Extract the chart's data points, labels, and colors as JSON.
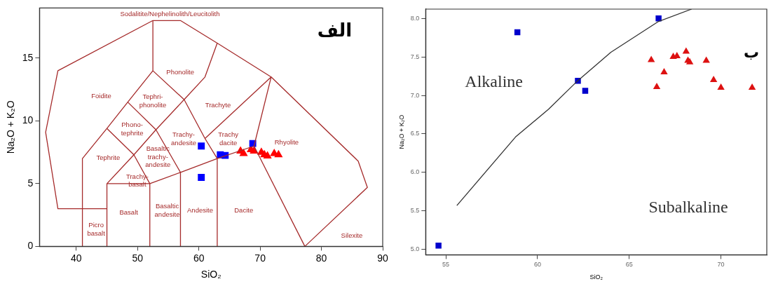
{
  "chart_data": [
    {
      "type": "scatter",
      "xlabel": "SiO₂",
      "ylabel": "Na₂O + K₂O",
      "xlim": [
        34,
        90
      ],
      "ylim": [
        0,
        19
      ],
      "xticks": [
        40,
        50,
        60,
        70,
        80,
        90
      ],
      "yticks": [
        0,
        5,
        10,
        15
      ],
      "grid": false,
      "legend": false,
      "series": [
        {
          "type": "line",
          "color": "#a52a2a",
          "marker": "none",
          "x": [
            45,
            37,
            35,
            37,
            52.5,
            57,
            63,
            71.8,
            86,
            87.5,
            77.3
          ],
          "values": [
            3,
            3,
            9.1,
            14,
            18,
            18,
            16.2,
            13.5,
            6.8,
            4.7,
            0
          ]
        },
        {
          "type": "line",
          "color": "#a52a2a",
          "marker": "none",
          "x": [
            41,
            41,
            45,
            48.4,
            52.5,
            52.5
          ],
          "values": [
            0,
            7,
            9.4,
            11.5,
            14,
            18
          ]
        },
        {
          "type": "line",
          "color": "#a52a2a",
          "marker": "none",
          "x": [
            45,
            45,
            52,
            57,
            63,
            69,
            71.8
          ],
          "values": [
            0,
            5,
            5,
            5.9,
            7,
            8,
            13.5
          ]
        },
        {
          "type": "line",
          "color": "#a52a2a",
          "marker": "none",
          "x": [
            52,
            52
          ],
          "values": [
            0,
            5
          ]
        },
        {
          "type": "line",
          "color": "#a52a2a",
          "marker": "none",
          "x": [
            57,
            57
          ],
          "values": [
            0,
            5.9
          ]
        },
        {
          "type": "line",
          "color": "#a52a2a",
          "marker": "none",
          "x": [
            63,
            63
          ],
          "values": [
            0,
            7
          ]
        },
        {
          "type": "line",
          "color": "#a52a2a",
          "marker": "none",
          "x": [
            69,
            77.3
          ],
          "values": [
            8,
            0
          ]
        },
        {
          "type": "line",
          "color": "#a52a2a",
          "marker": "none",
          "x": [
            45,
            49.4,
            52
          ],
          "values": [
            9.4,
            7.3,
            5
          ]
        },
        {
          "type": "line",
          "color": "#a52a2a",
          "marker": "none",
          "x": [
            45,
            49.4,
            53,
            57.6,
            61,
            63
          ],
          "values": [
            5,
            7.3,
            9.3,
            11.7,
            13.5,
            16.2
          ]
        },
        {
          "type": "line",
          "color": "#a52a2a",
          "marker": "none",
          "x": [
            48.4,
            53,
            57
          ],
          "values": [
            11.5,
            9.3,
            5.9
          ]
        },
        {
          "type": "line",
          "color": "#a52a2a",
          "marker": "none",
          "x": [
            52.5,
            57.6,
            61,
            63
          ],
          "values": [
            14,
            11.7,
            8.6,
            7
          ]
        },
        {
          "type": "line",
          "color": "#a52a2a",
          "marker": "none",
          "x": [
            61,
            71.8
          ],
          "values": [
            8.6,
            13.5
          ]
        },
        {
          "type": "scatter",
          "color": "#0000ff",
          "marker": "square",
          "x": [
            60.4,
            60.4,
            63.5,
            64.3,
            68.8
          ],
          "values": [
            8.0,
            5.5,
            7.3,
            7.25,
            8.2
          ]
        },
        {
          "type": "scatter",
          "color": "#ff0000",
          "marker": "triangle",
          "x": [
            66.8,
            67.3,
            68.5,
            69,
            70.2,
            70.7,
            71.2,
            72.3,
            73
          ],
          "values": [
            7.6,
            7.4,
            7.7,
            7.6,
            7.5,
            7.3,
            7.2,
            7.4,
            7.3
          ]
        }
      ],
      "annotations": [
        "الف",
        "Sodalitite/Nephelinolith/Leucitolith",
        "Phonolite",
        "Foidite",
        "Tephri-\nphonolite",
        "Trachyte",
        "Phono-\ntephrite",
        "Trachy-\nandesite",
        "Trachy\ndacite",
        "Rhyolite",
        "Tephrite",
        "Basaltic\ntrachy-\nandesite",
        "Trachy-\nbasalt",
        "Picro\nbasalt",
        "Basalt",
        "Basaltic\nandesite",
        "Andesite",
        "Dacite",
        "Silexite"
      ]
    },
    {
      "type": "scatter",
      "xlabel": "SiO₂",
      "ylabel": "Na₂O + K₂O",
      "xlim": [
        53.9,
        72.5
      ],
      "ylim": [
        4.93,
        8.12
      ],
      "xticks": [
        55,
        60,
        65,
        70
      ],
      "yticks": [
        {
          "value": 5,
          "label": "5.0"
        },
        5.5,
        {
          "value": 6,
          "label": "6.0"
        },
        6.5,
        {
          "value": 7,
          "label": "7.0"
        },
        7.5,
        {
          "value": 8,
          "label": "8.0"
        }
      ],
      "grid": false,
      "legend": false,
      "series": [
        {
          "type": "line",
          "color": "#333333",
          "marker": "none",
          "x": [
            55.6,
            58.8,
            60.6,
            62.1,
            64.0,
            66.6,
            68.4
          ],
          "values": [
            5.57,
            6.46,
            6.82,
            7.17,
            7.56,
            7.96,
            8.12
          ]
        },
        {
          "type": "scatter",
          "color": "#0000cc",
          "marker": "square",
          "x": [
            58.9,
            66.6,
            62.2,
            62.6,
            54.6
          ],
          "values": [
            7.82,
            8.0,
            7.19,
            7.06,
            5.05
          ]
        },
        {
          "type": "scatter",
          "color": "#dd1111",
          "marker": "triangle",
          "x": [
            66.2,
            66.9,
            67.4,
            67.6,
            68.1,
            68.2,
            68.3,
            69.2,
            69.6,
            70.0,
            71.7,
            66.5
          ],
          "values": [
            7.46,
            7.3,
            7.5,
            7.51,
            7.57,
            7.45,
            7.43,
            7.45,
            7.2,
            7.1,
            7.1,
            7.11
          ]
        }
      ],
      "annotations": [
        "ب",
        "Alkaline",
        "Subalkaline"
      ]
    }
  ]
}
